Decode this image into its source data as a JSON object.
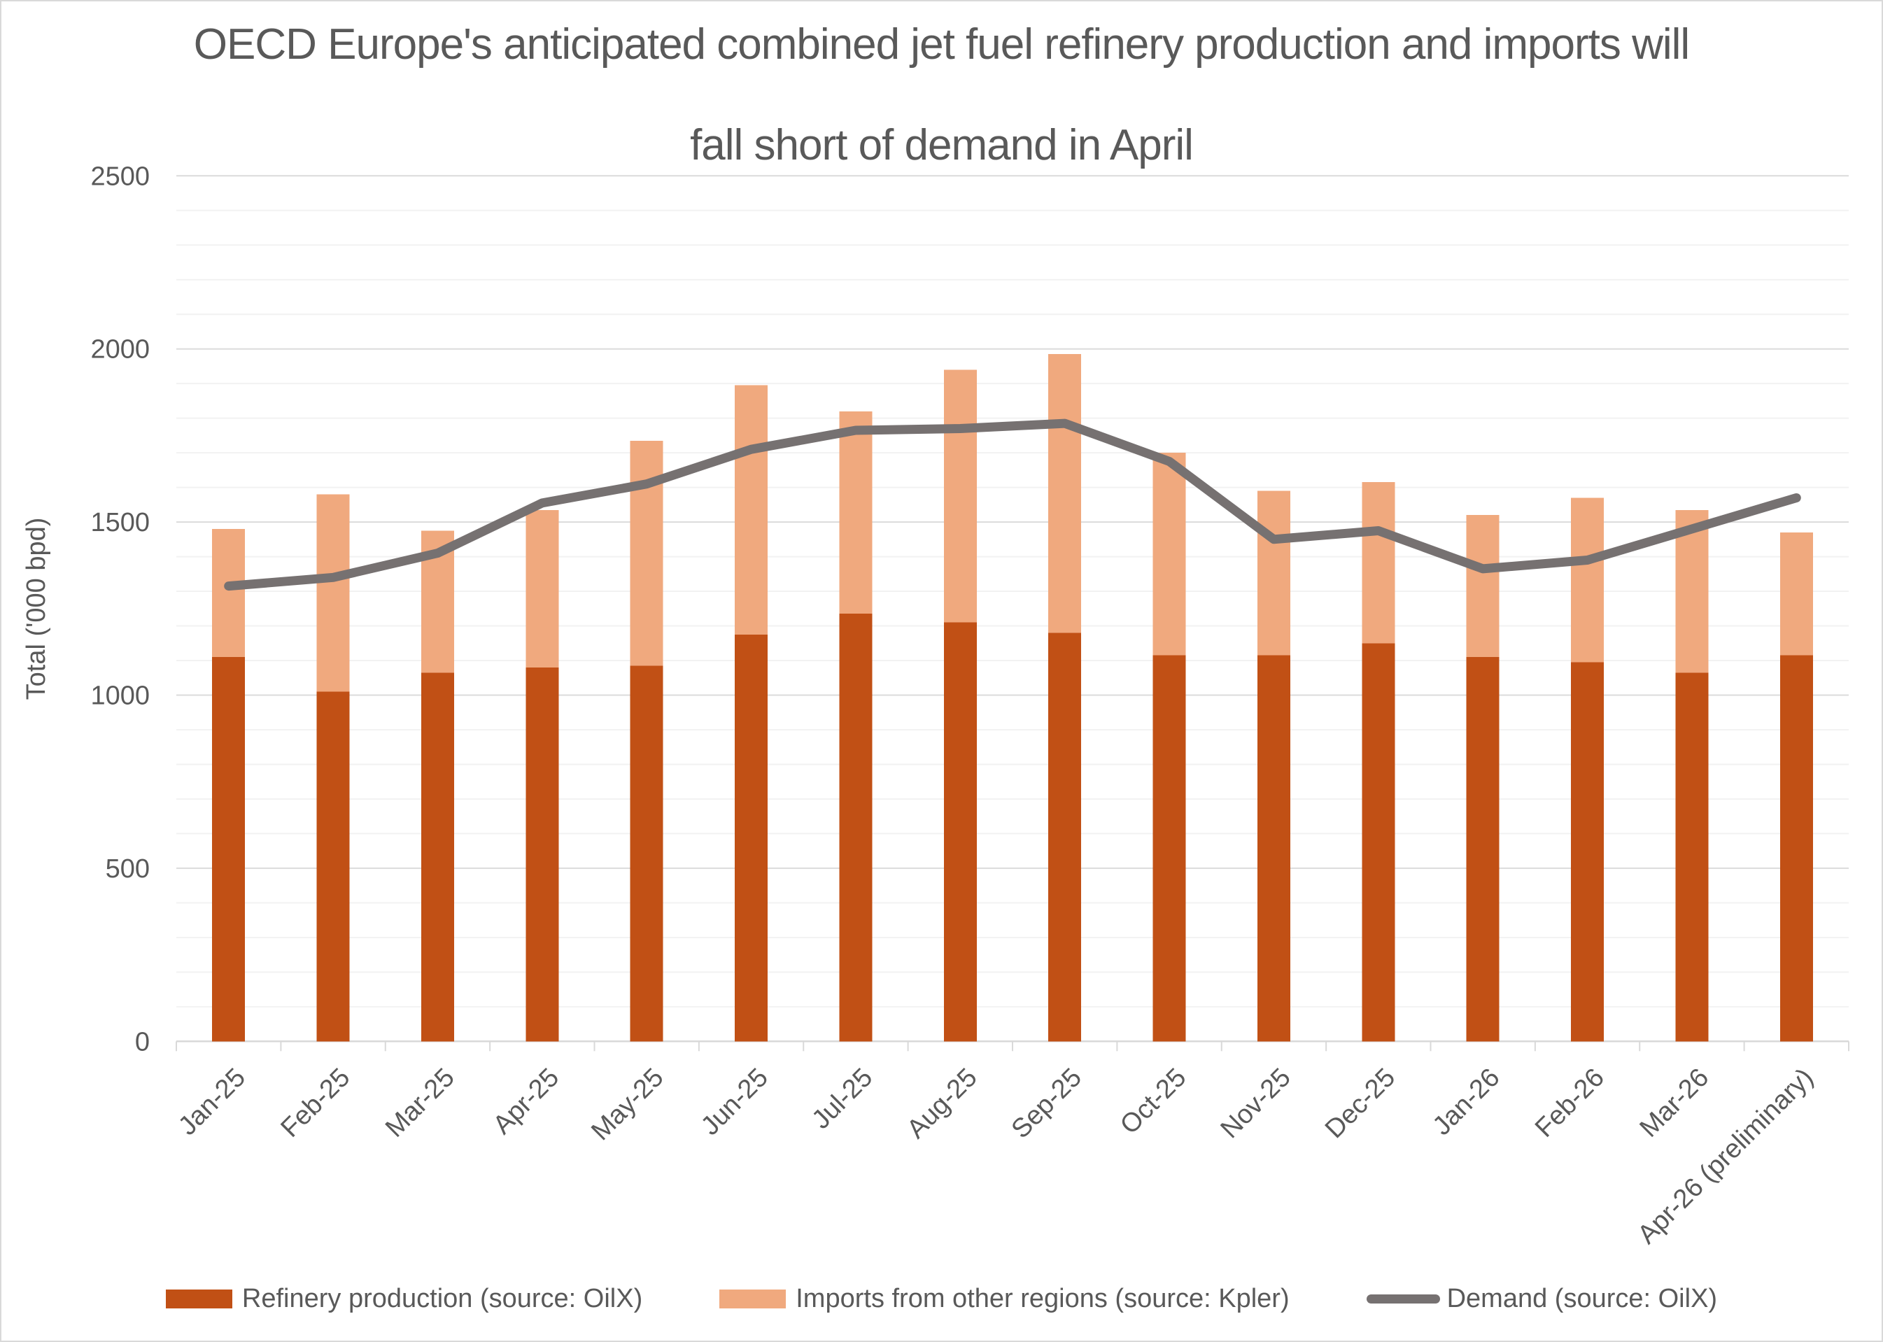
{
  "chart_data": {
    "type": "bar",
    "stacked": true,
    "title": "OECD Europe's anticipated combined jet fuel refinery production and imports will fall short of demand in April",
    "title_lines": [
      "OECD Europe's anticipated combined jet fuel refinery production and imports will",
      "fall short of demand in April"
    ],
    "xlabel": "",
    "ylabel": "Total ('000 bpd)",
    "ylim": [
      0,
      2500
    ],
    "y_major_step": 500,
    "y_minor_step": 100,
    "grid": true,
    "legend_position": "bottom",
    "categories": [
      "Jan-25",
      "Feb-25",
      "Mar-25",
      "Apr-25",
      "May-25",
      "Jun-25",
      "Jul-25",
      "Aug-25",
      "Sep-25",
      "Oct-25",
      "Nov-25",
      "Dec-25",
      "Jan-26",
      "Feb-26",
      "Mar-26",
      "Apr-26 (preliminary)"
    ],
    "series": [
      {
        "name": "Refinery production (source: OilX)",
        "render": "bar",
        "color": "#C15015",
        "values": [
          1110,
          1010,
          1065,
          1080,
          1085,
          1175,
          1235,
          1210,
          1180,
          1115,
          1115,
          1150,
          1110,
          1095,
          1065,
          1115
        ]
      },
      {
        "name": "Imports from other regions (source: Kpler)",
        "render": "bar",
        "color": "#F0A97E",
        "values": [
          370,
          570,
          410,
          455,
          650,
          720,
          585,
          730,
          805,
          585,
          475,
          465,
          410,
          475,
          470,
          355
        ]
      },
      {
        "name": "Demand (source: OilX)",
        "render": "line",
        "color": "#767171",
        "values": [
          1315,
          1340,
          1410,
          1555,
          1610,
          1710,
          1765,
          1770,
          1785,
          1675,
          1450,
          1475,
          1365,
          1390,
          1480,
          1570
        ]
      }
    ],
    "stacked_totals": [
      1480,
      1580,
      1475,
      1535,
      1735,
      1895,
      1820,
      1940,
      1985,
      1700,
      1590,
      1615,
      1520,
      1570,
      1535,
      1470
    ],
    "colors": {
      "axis_text": "#595959",
      "title_text": "#595959",
      "gridline_minor": "#F2F2F2",
      "gridline_major": "#DBDBDB",
      "axis_line": "#D9D9D9",
      "background": "#FFFFFF"
    }
  }
}
